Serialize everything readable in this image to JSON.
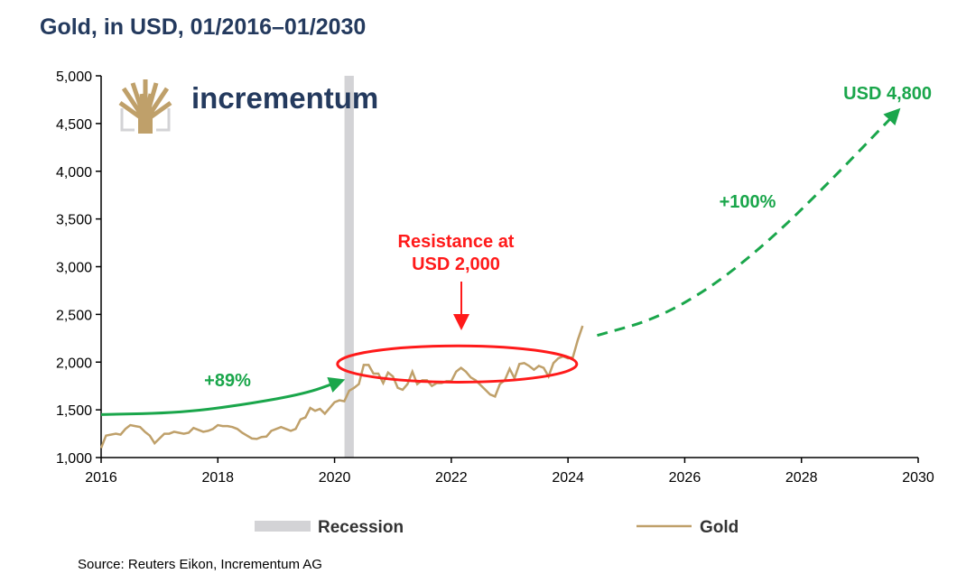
{
  "chart_data": {
    "type": "line",
    "title": "Gold, in USD, 01/2016–01/2030",
    "source": "Source: Reuters Eikon, Incrementum AG",
    "logo_text": "incrementum",
    "xlim": [
      2016,
      2030
    ],
    "ylim": [
      1000,
      5000
    ],
    "x_ticks": [
      "2016",
      "2018",
      "2020",
      "2022",
      "2024",
      "2026",
      "2028",
      "2030"
    ],
    "y_ticks": [
      "1,000",
      "1,500",
      "2,000",
      "2,500",
      "3,000",
      "3,500",
      "4,000",
      "4,500",
      "5,000"
    ],
    "grid": false,
    "legend": {
      "placement": "bottom",
      "entries": [
        "Recession",
        "Gold"
      ]
    },
    "colors": {
      "gold": "#bfa06a",
      "recession": "#d3d3d6",
      "green": "#1aa64b",
      "red": "#ff1a1a",
      "title": "#243a5e"
    },
    "recession": [
      2020.17,
      2020.33
    ],
    "gold_series": {
      "name": "Gold",
      "start": 2016.0,
      "step_months": 1,
      "values": [
        1100,
        1230,
        1240,
        1250,
        1240,
        1300,
        1340,
        1330,
        1320,
        1270,
        1230,
        1150,
        1200,
        1250,
        1250,
        1270,
        1260,
        1250,
        1260,
        1310,
        1290,
        1270,
        1280,
        1300,
        1340,
        1330,
        1330,
        1320,
        1300,
        1260,
        1230,
        1200,
        1195,
        1215,
        1220,
        1280,
        1300,
        1320,
        1300,
        1280,
        1300,
        1400,
        1420,
        1520,
        1490,
        1510,
        1460,
        1520,
        1580,
        1600,
        1590,
        1700,
        1730,
        1770,
        1970,
        1970,
        1880,
        1880,
        1780,
        1890,
        1850,
        1730,
        1710,
        1770,
        1900,
        1770,
        1810,
        1810,
        1750,
        1780,
        1780,
        1800,
        1800,
        1900,
        1940,
        1900,
        1840,
        1810,
        1760,
        1710,
        1660,
        1640,
        1770,
        1810,
        1930,
        1830,
        1980,
        1990,
        1960,
        1920,
        1960,
        1940,
        1850,
        1990,
        2040,
        2060,
        2040,
        2050,
        2230,
        2380
      ]
    },
    "projection": {
      "x": [
        2024.5,
        2025.5,
        2026.5,
        2027.5,
        2028.5,
        2029.6
      ],
      "y": [
        2280,
        2450,
        2800,
        3300,
        3900,
        4600
      ]
    },
    "trend_arrow": {
      "x": [
        2016,
        2017.4,
        2018.5,
        2019.5,
        2020.05
      ],
      "y": [
        1450,
        1470,
        1560,
        1670,
        1790
      ]
    },
    "resistance_ellipse": {
      "cx": 2022.1,
      "cy": 1980,
      "rx_years": 2.05,
      "ry_usd": 190
    },
    "annotations": {
      "growth_past": "+89%",
      "growth_future": "+100%",
      "target": "USD 4,800",
      "resistance_line1": "Resistance at",
      "resistance_line2": "USD 2,000"
    }
  }
}
